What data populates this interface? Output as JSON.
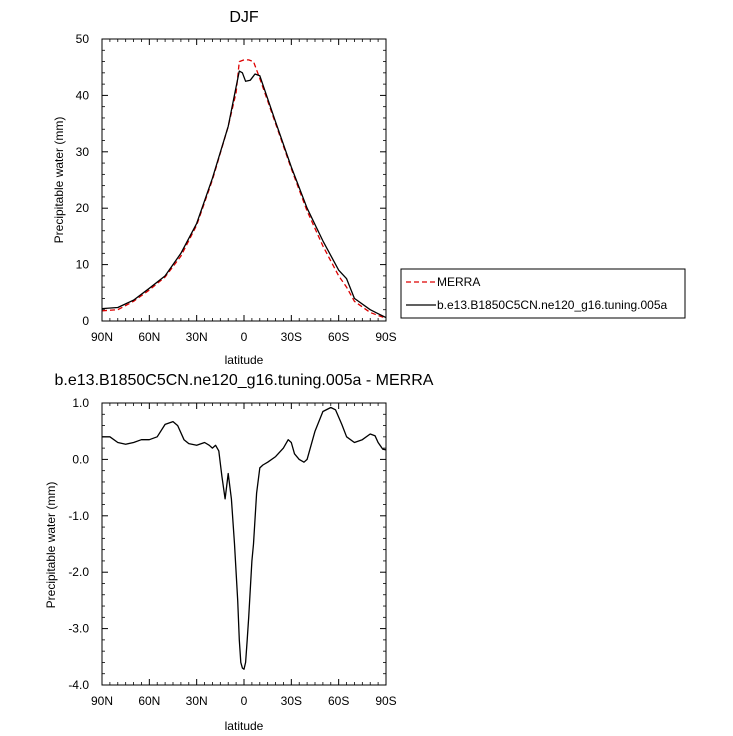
{
  "chart_data": [
    {
      "type": "line",
      "title": "DJF",
      "xlabel": "latitude",
      "ylabel": "Precipitable water (mm)",
      "xlim": [
        -90,
        90
      ],
      "ylim": [
        0,
        50
      ],
      "xticks": [
        -90,
        -60,
        -30,
        0,
        30,
        60,
        90
      ],
      "xtick_labels": [
        "90N",
        "60N",
        "30N",
        "0",
        "30S",
        "60S",
        "90S"
      ],
      "yticks": [
        0,
        10,
        20,
        30,
        40,
        50
      ],
      "ytick_labels": [
        "0",
        "10",
        "20",
        "30",
        "40",
        "50"
      ],
      "legend_position": "right-middle",
      "series": [
        {
          "name": "MERRA",
          "color": "#dd0000",
          "dash": "dashed",
          "x": [
            -90,
            -80,
            -70,
            -60,
            -50,
            -40,
            -30,
            -20,
            -10,
            -5,
            -3,
            0,
            3,
            6,
            10,
            20,
            30,
            40,
            50,
            60,
            65,
            70,
            80,
            85,
            90
          ],
          "y": [
            1.8,
            2.0,
            3.5,
            5.5,
            7.8,
            11.5,
            17.0,
            25.0,
            34.5,
            40.5,
            46.0,
            46.3,
            46.3,
            46.0,
            43.0,
            35.0,
            27.0,
            19.5,
            13.3,
            8.0,
            6.0,
            3.5,
            1.5,
            1.0,
            0.5
          ]
        },
        {
          "name": "b.e13.B1850C5CN.ne120_g16.tuning.005a",
          "color": "#000000",
          "dash": "solid",
          "x": [
            -90,
            -80,
            -70,
            -60,
            -50,
            -40,
            -30,
            -20,
            -10,
            -5,
            -3,
            -1,
            1,
            4,
            7,
            10,
            20,
            30,
            40,
            50,
            60,
            65,
            70,
            80,
            85,
            90
          ],
          "y": [
            2.2,
            2.4,
            3.7,
            5.8,
            8.0,
            12.0,
            17.3,
            25.3,
            34.5,
            41.5,
            44.3,
            44.0,
            42.5,
            42.7,
            43.8,
            43.5,
            35.3,
            27.3,
            20.0,
            14.2,
            9.0,
            7.5,
            4.0,
            2.0,
            1.3,
            0.6
          ]
        }
      ]
    },
    {
      "type": "line",
      "title": "b.e13.B1850C5CN.ne120_g16.tuning.005a - MERRA",
      "xlabel": "latitude",
      "ylabel": "Precipitable water (mm)",
      "xlim": [
        -90,
        90
      ],
      "ylim": [
        -4.0,
        1.0
      ],
      "xticks": [
        -90,
        -60,
        -30,
        0,
        30,
        60,
        90
      ],
      "xtick_labels": [
        "90N",
        "60N",
        "30N",
        "0",
        "30S",
        "60S",
        "90S"
      ],
      "yticks": [
        -4.0,
        -3.0,
        -2.0,
        -1.0,
        0.0,
        1.0
      ],
      "ytick_labels": [
        "-4.0",
        "-3.0",
        "-2.0",
        "-1.0",
        "0.0",
        "1.0"
      ],
      "series": [
        {
          "color": "#000000",
          "dash": "solid",
          "x": [
            -90,
            -85,
            -80,
            -75,
            -70,
            -65,
            -60,
            -55,
            -50,
            -45,
            -42,
            -38,
            -35,
            -30,
            -25,
            -22,
            -20,
            -18,
            -16,
            -14,
            -12,
            -10,
            -8,
            -6,
            -4,
            -3,
            -2,
            -1,
            0,
            1,
            2,
            3,
            4,
            5,
            6,
            8,
            10,
            12,
            15,
            20,
            25,
            28,
            30,
            32,
            35,
            38,
            40,
            45,
            50,
            55,
            58,
            62,
            65,
            70,
            75,
            80,
            83,
            85,
            88,
            90
          ],
          "y": [
            0.4,
            0.4,
            0.3,
            0.27,
            0.3,
            0.35,
            0.35,
            0.4,
            0.62,
            0.67,
            0.6,
            0.35,
            0.28,
            0.25,
            0.3,
            0.25,
            0.2,
            0.25,
            0.15,
            -0.3,
            -0.7,
            -0.25,
            -0.7,
            -1.5,
            -2.5,
            -3.2,
            -3.6,
            -3.7,
            -3.72,
            -3.6,
            -3.2,
            -2.8,
            -2.3,
            -1.8,
            -1.5,
            -0.6,
            -0.15,
            -0.1,
            -0.05,
            0.05,
            0.2,
            0.35,
            0.3,
            0.1,
            0.0,
            -0.05,
            0.0,
            0.5,
            0.85,
            0.92,
            0.88,
            0.62,
            0.4,
            0.3,
            0.35,
            0.45,
            0.42,
            0.3,
            0.18,
            0.17
          ]
        }
      ]
    }
  ]
}
